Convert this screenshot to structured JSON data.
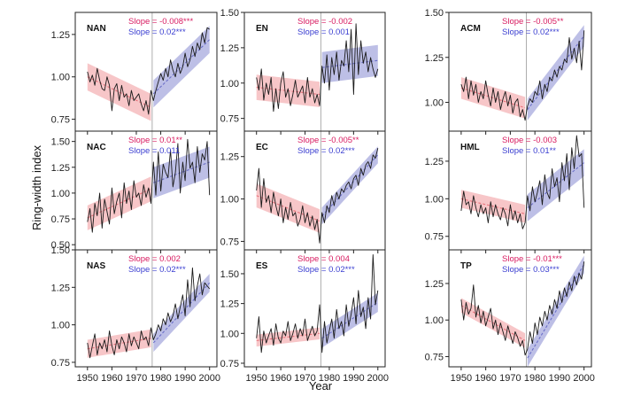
{
  "figure": {
    "xlabel": "Year",
    "ylabel": "Ring-width index"
  },
  "colors": {
    "pre": "#e8757e",
    "pre_band": "#f4b3b6",
    "post": "#6b6fc8",
    "post_band": "#a7a9de",
    "pre_text": "#d81b60",
    "post_text": "#3b3fd1",
    "series": "#1a1a1a"
  },
  "chart_data": [
    {
      "type": "line",
      "title": "NAN",
      "slope_pre": "Slope = -0.008***",
      "slope_post": "Slope = 0.02***",
      "ylim": [
        0.68,
        1.38
      ],
      "yticks": [
        0.75,
        1.0,
        1.25
      ],
      "ytick_labels": [
        "0.75",
        "1.00",
        "1.25"
      ],
      "x_range": [
        1945,
        2003
      ],
      "pre_fit": [
        1950,
        1.0,
        1976,
        0.82
      ],
      "pre_band": 0.08,
      "post_fit": [
        1977,
        0.9,
        2000,
        1.22
      ],
      "post_band": 0.08,
      "series": {
        "start": 1950,
        "values": [
          1.03,
          0.97,
          1.01,
          0.95,
          1.05,
          0.98,
          0.93,
          0.92,
          1.0,
          0.95,
          0.8,
          0.93,
          0.96,
          0.86,
          0.95,
          0.88,
          0.9,
          0.83,
          0.92,
          0.86,
          0.88,
          0.9,
          0.84,
          0.8,
          0.86,
          0.78,
          0.92,
          0.86,
          0.92,
          0.97,
          1.02,
          0.98,
          1.05,
          1.0,
          1.1,
          1.04,
          1.0,
          1.08,
          1.02,
          1.06,
          1.14,
          1.06,
          1.1,
          1.18,
          1.12,
          1.2,
          1.16,
          1.26,
          1.2,
          1.29,
          1.28
        ]
      }
    },
    {
      "type": "line",
      "title": "EN",
      "slope_pre": "Slope = -0.002",
      "slope_post": "Slope = 0.001",
      "ylim": [
        0.66,
        1.5
      ],
      "yticks": [
        0.75,
        1.0,
        1.25,
        1.5
      ],
      "ytick_labels": [
        "0.75",
        "1.00",
        "1.25",
        "1.50"
      ],
      "x_range": [
        1945,
        2003
      ],
      "pre_fit": [
        1950,
        0.97,
        1976,
        0.92
      ],
      "pre_band": 0.09,
      "post_fit": [
        1977,
        1.11,
        2000,
        1.16
      ],
      "post_band": 0.11,
      "series": {
        "start": 1950,
        "values": [
          1.04,
          0.95,
          1.1,
          0.88,
          1.0,
          0.92,
          1.04,
          0.8,
          0.96,
          0.82,
          1.0,
          1.08,
          0.9,
          0.96,
          0.84,
          0.92,
          1.02,
          0.9,
          0.94,
          0.98,
          0.86,
          1.04,
          0.9,
          0.96,
          0.86,
          0.92,
          0.84,
          1.12,
          1.0,
          1.2,
          0.95,
          1.18,
          1.06,
          1.22,
          1.02,
          1.16,
          1.12,
          1.3,
          1.08,
          1.38,
          0.92,
          1.42,
          1.06,
          1.3,
          1.14,
          1.22,
          1.08,
          1.18,
          1.1,
          1.04,
          1.1
        ]
      }
    },
    {
      "type": "line",
      "title": "ACM",
      "slope_pre": "Slope = -0.005**",
      "slope_post": "Slope = 0.02***",
      "ylim": [
        0.84,
        1.5
      ],
      "yticks": [
        1.0,
        1.25,
        1.5
      ],
      "ytick_labels": [
        "1.00",
        "1.25",
        "1.50"
      ],
      "x_range": [
        1945,
        2003
      ],
      "pre_fit": [
        1950,
        1.08,
        1976,
        0.97
      ],
      "pre_band": 0.06,
      "post_fit": [
        1977,
        0.96,
        2000,
        1.37
      ],
      "post_band": 0.06,
      "series": {
        "start": 1950,
        "values": [
          1.1,
          1.06,
          1.14,
          1.02,
          1.12,
          1.04,
          1.1,
          1.0,
          1.06,
          1.02,
          1.12,
          1.04,
          0.98,
          1.08,
          1.0,
          1.06,
          0.96,
          1.02,
          1.06,
          0.98,
          1.04,
          0.94,
          1.0,
          1.02,
          0.92,
          0.96,
          0.9,
          0.98,
          1.02,
          1.0,
          1.06,
          1.04,
          1.12,
          1.02,
          1.1,
          1.06,
          1.14,
          1.12,
          1.18,
          1.14,
          1.2,
          1.18,
          1.24,
          1.22,
          1.36,
          1.24,
          1.3,
          1.22,
          1.34,
          1.18,
          1.4
        ]
      }
    },
    {
      "type": "line",
      "title": "NAC",
      "slope_pre": "Slope = 0.01**",
      "slope_post": "Slope = 0.011",
      "ylim": [
        0.45,
        1.6
      ],
      "yticks": [
        0.5,
        0.75,
        1.0,
        1.25,
        1.5
      ],
      "ytick_labels": [
        "0.50",
        "0.75",
        "1.00",
        "1.25",
        "1.50"
      ],
      "x_range": [
        1945,
        2003
      ],
      "pre_fit": [
        1950,
        0.76,
        1976,
        1.04
      ],
      "pre_band": 0.12,
      "post_fit": [
        1977,
        1.1,
        2000,
        1.3
      ],
      "post_band": 0.15,
      "series": {
        "start": 1950,
        "values": [
          0.72,
          0.85,
          0.62,
          0.9,
          0.78,
          1.0,
          0.66,
          0.94,
          0.82,
          0.7,
          1.05,
          0.8,
          0.92,
          1.0,
          0.76,
          1.1,
          0.9,
          1.02,
          0.84,
          1.12,
          0.96,
          1.0,
          0.88,
          1.08,
          0.96,
          1.05,
          0.9,
          1.3,
          0.98,
          1.4,
          1.02,
          1.28,
          1.2,
          1.15,
          1.42,
          1.06,
          1.2,
          1.48,
          1.0,
          1.3,
          1.12,
          1.52,
          1.24,
          1.3,
          1.1,
          1.45,
          1.2,
          1.38,
          1.32,
          1.5,
          0.98
        ]
      }
    },
    {
      "type": "line",
      "title": "EC",
      "slope_pre": "Slope = -0.005**",
      "slope_post": "Slope = 0.02***",
      "ylim": [
        0.7,
        1.4
      ],
      "yticks": [
        0.75,
        1.0,
        1.25
      ],
      "ytick_labels": [
        "0.75",
        "1.00",
        "1.25"
      ],
      "x_range": [
        1945,
        2003
      ],
      "pre_fit": [
        1950,
        1.02,
        1976,
        0.87
      ],
      "pre_band": 0.07,
      "post_fit": [
        1977,
        0.9,
        2000,
        1.26
      ],
      "post_band": 0.05,
      "series": {
        "start": 1950,
        "values": [
          1.05,
          1.18,
          0.95,
          1.12,
          0.98,
          1.02,
          0.92,
          1.04,
          0.96,
          0.9,
          1.0,
          0.86,
          0.95,
          0.88,
          0.98,
          0.9,
          0.92,
          0.84,
          0.88,
          0.96,
          0.86,
          0.92,
          0.84,
          0.9,
          0.82,
          0.88,
          0.74,
          0.92,
          0.86,
          0.96,
          0.92,
          1.02,
          0.96,
          1.04,
          1.0,
          1.06,
          1.04,
          1.08,
          1.1,
          1.06,
          1.12,
          1.14,
          1.08,
          1.18,
          1.14,
          1.2,
          1.22,
          1.18,
          1.26,
          1.24,
          1.3
        ]
      }
    },
    {
      "type": "line",
      "title": "HML",
      "slope_pre": "Slope = -0.003",
      "slope_post": "Slope = 0.01**",
      "ylim": [
        0.66,
        1.45
      ],
      "yticks": [
        0.75,
        1.0,
        1.25
      ],
      "ytick_labels": [
        "0.75",
        "1.00",
        "1.25"
      ],
      "x_range": [
        1945,
        2003
      ],
      "pre_fit": [
        1950,
        1.0,
        1976,
        0.9
      ],
      "pre_band": 0.06,
      "post_fit": [
        1977,
        0.94,
        2000,
        1.24
      ],
      "post_band": 0.09,
      "series": {
        "start": 1950,
        "values": [
          0.92,
          1.05,
          0.96,
          0.98,
          0.9,
          1.02,
          0.94,
          0.88,
          0.96,
          0.9,
          0.94,
          0.84,
          0.98,
          0.88,
          0.96,
          0.9,
          0.86,
          0.94,
          0.9,
          0.82,
          0.96,
          0.86,
          0.92,
          0.84,
          0.9,
          0.8,
          0.84,
          1.02,
          0.92,
          1.08,
          0.98,
          1.04,
          1.12,
          0.96,
          1.16,
          1.04,
          1.0,
          1.2,
          1.08,
          1.14,
          0.98,
          1.24,
          1.12,
          1.3,
          1.06,
          1.34,
          1.2,
          1.42,
          1.28,
          1.3,
          0.94
        ]
      }
    },
    {
      "type": "line",
      "title": "NAS",
      "slope_pre": "Slope = 0.002",
      "slope_post": "Slope = 0.02***",
      "ylim": [
        0.72,
        1.5
      ],
      "yticks": [
        0.75,
        1.0,
        1.25,
        1.5
      ],
      "ytick_labels": [
        "0.75",
        "1.00",
        "1.25",
        "1.50"
      ],
      "x_range": [
        1945,
        2003
      ],
      "pre_fit": [
        1950,
        0.84,
        1976,
        0.91
      ],
      "pre_band": 0.06,
      "post_fit": [
        1977,
        0.88,
        2000,
        1.28
      ],
      "post_band": 0.06,
      "series": {
        "start": 1950,
        "values": [
          0.88,
          0.78,
          0.86,
          0.94,
          0.8,
          0.88,
          0.84,
          0.9,
          0.82,
          0.96,
          0.86,
          0.8,
          0.9,
          0.84,
          0.92,
          0.88,
          0.82,
          0.94,
          0.86,
          0.92,
          0.88,
          0.84,
          0.96,
          0.9,
          0.92,
          0.86,
          0.98,
          0.9,
          0.94,
          1.0,
          0.96,
          1.04,
          1.0,
          1.08,
          1.02,
          1.06,
          1.14,
          1.04,
          1.12,
          1.2,
          1.06,
          1.3,
          1.12,
          1.38,
          1.16,
          1.26,
          1.34,
          1.2,
          1.28,
          1.26,
          1.24
        ]
      }
    },
    {
      "type": "line",
      "title": "ES",
      "slope_pre": "Slope = 0.004",
      "slope_post": "Slope = 0.02***",
      "ylim": [
        0.72,
        1.7
      ],
      "yticks": [
        0.75,
        1.0,
        1.25,
        1.5
      ],
      "ytick_labels": [
        "0.75",
        "1.00",
        "1.25",
        "1.50"
      ],
      "x_range": [
        1945,
        2003
      ],
      "pre_fit": [
        1950,
        0.94,
        1976,
        1.0
      ],
      "pre_band": 0.05,
      "post_fit": [
        1977,
        0.96,
        2000,
        1.26
      ],
      "post_band": 0.08,
      "series": {
        "start": 1950,
        "values": [
          0.96,
          1.14,
          0.84,
          1.02,
          0.92,
          0.98,
          1.04,
          0.9,
          1.08,
          0.96,
          0.92,
          1.02,
          0.98,
          1.1,
          0.94,
          1.0,
          1.08,
          0.96,
          1.04,
          0.98,
          1.12,
          0.94,
          1.0,
          1.06,
          0.98,
          1.02,
          1.24,
          0.84,
          1.1,
          0.92,
          1.02,
          1.12,
          0.96,
          1.2,
          1.04,
          1.1,
          0.98,
          1.24,
          1.06,
          1.16,
          1.3,
          1.08,
          1.36,
          1.14,
          1.22,
          1.04,
          1.3,
          1.12,
          1.66,
          1.24,
          1.36
        ]
      }
    },
    {
      "type": "line",
      "title": "TP",
      "slope_pre": "Slope = -0.01***",
      "slope_post": "Slope = 0.03***",
      "ylim": [
        0.68,
        1.48
      ],
      "yticks": [
        0.75,
        1.0,
        1.25
      ],
      "ytick_labels": [
        "0.75",
        "1.00",
        "1.25"
      ],
      "x_range": [
        1945,
        2003
      ],
      "pre_fit": [
        1950,
        1.1,
        1976,
        0.86
      ],
      "pre_band": 0.05,
      "post_fit": [
        1977,
        0.74,
        2000,
        1.38
      ],
      "post_band": 0.06,
      "series": {
        "start": 1950,
        "values": [
          1.14,
          1.0,
          1.12,
          1.04,
          1.08,
          1.24,
          1.02,
          1.1,
          0.98,
          1.06,
          0.96,
          1.02,
          1.08,
          0.94,
          1.0,
          0.9,
          0.98,
          0.92,
          0.86,
          0.96,
          0.9,
          0.84,
          0.92,
          0.88,
          0.82,
          0.86,
          0.76,
          0.8,
          0.92,
          0.84,
          0.98,
          0.9,
          1.02,
          0.96,
          1.06,
          1.0,
          1.1,
          1.04,
          1.14,
          1.08,
          1.2,
          1.12,
          1.22,
          1.16,
          1.26,
          1.2,
          1.3,
          1.24,
          1.32,
          1.28,
          1.4
        ]
      }
    }
  ]
}
